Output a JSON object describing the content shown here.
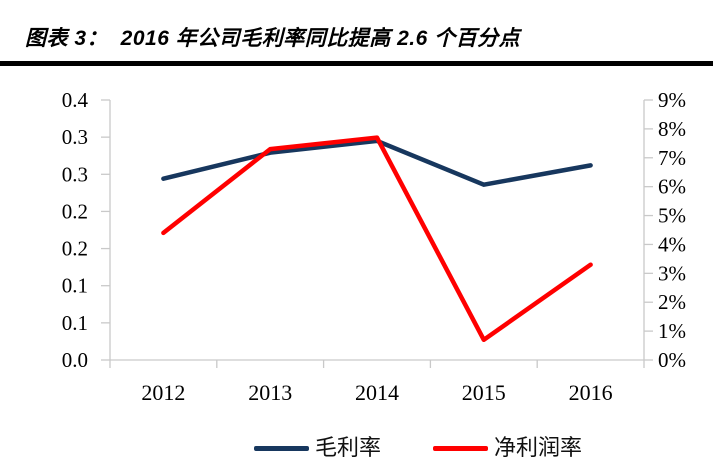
{
  "header": {
    "title": "图表 3：  2016 年公司毛利率同比提高 2.6 个百分点"
  },
  "chart_data": {
    "type": "line",
    "title": "2016 年公司毛利率同比提高 2.6 个百分点",
    "categories": [
      "2012",
      "2013",
      "2014",
      "2015",
      "2016"
    ],
    "series": [
      {
        "name": "毛利率",
        "data_name": "gross-margin-line",
        "axis": "left",
        "color": "#17375E",
        "values": [
          0.244,
          0.279,
          0.295,
          0.236,
          0.262
        ]
      },
      {
        "name": "净利润率",
        "data_name": "net-profit-margin-line",
        "axis": "right",
        "color": "#FF0000",
        "values": [
          4.4,
          7.3,
          7.7,
          0.7,
          3.3
        ]
      }
    ],
    "left_axis": {
      "min": 0,
      "max": 0.35,
      "tick_step": 0.05,
      "tick_labels_top_to_bottom": [
        "0.4",
        "0.3",
        "0.3",
        "0.2",
        "0.2",
        "0.1",
        "0.1",
        "0.0"
      ]
    },
    "right_axis": {
      "min": 0,
      "max": 9,
      "tick_step": 1,
      "unit": "%",
      "tick_labels_top_to_bottom": [
        "9%",
        "8%",
        "7%",
        "6%",
        "5%",
        "4%",
        "3%",
        "2%",
        "1%",
        "0%"
      ]
    },
    "grid": false,
    "legend_position": "bottom"
  },
  "legend": {
    "items": [
      {
        "label": "毛利率",
        "color": "#17375E"
      },
      {
        "label": "净利润率",
        "color": "#FF0000"
      }
    ]
  },
  "colors": {
    "axis_line": "#C9C9C9",
    "label_text": "#000000",
    "title_text": "#000000",
    "rule": "#000000",
    "background": "#FFFFFF"
  }
}
